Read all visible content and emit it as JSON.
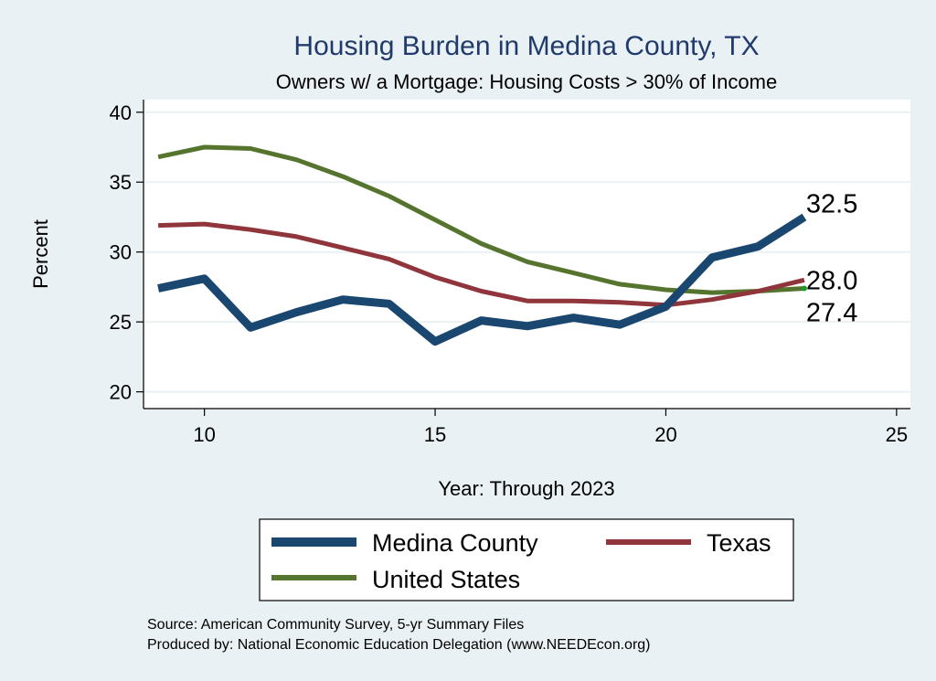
{
  "chart_data": {
    "type": "line",
    "title": "Housing Burden in Medina County, TX",
    "subtitle": "Owners w/ a Mortgage: Housing Costs > 30% of Income",
    "xlabel": "Year: Through 2023",
    "ylabel": "Percent",
    "xlim": [
      8.7,
      25.3
    ],
    "ylim": [
      18.8,
      40.9
    ],
    "x_ticks": [
      10,
      15,
      20,
      25
    ],
    "y_ticks": [
      20,
      25,
      30,
      35,
      40
    ],
    "grid": true,
    "x": [
      9,
      10,
      11,
      12,
      13,
      14,
      15,
      16,
      17,
      18,
      19,
      20,
      21,
      22,
      23
    ],
    "series": [
      {
        "name": "Medina County",
        "color": "#1a476f",
        "values": [
          27.4,
          28.1,
          24.6,
          25.7,
          26.6,
          26.3,
          23.6,
          25.1,
          24.7,
          25.3,
          24.8,
          26.1,
          29.6,
          30.4,
          32.5
        ],
        "end_label": "32.5"
      },
      {
        "name": "Texas",
        "color": "#90353b",
        "values": [
          31.9,
          32.0,
          31.6,
          31.1,
          30.3,
          29.5,
          28.2,
          27.2,
          26.5,
          26.5,
          26.4,
          26.2,
          26.6,
          27.2,
          28.0
        ],
        "end_label": "28.0"
      },
      {
        "name": "United States",
        "color": "#55752f",
        "values": [
          36.8,
          37.5,
          37.4,
          36.6,
          35.4,
          34.0,
          32.3,
          30.6,
          29.3,
          28.5,
          27.7,
          27.3,
          27.1,
          27.2,
          27.4
        ],
        "end_label": "27.4"
      }
    ],
    "legend": {
      "position": "bottom",
      "items": [
        "Medina County",
        "Texas",
        "United States"
      ]
    },
    "notes": [
      "Source: American Community Survey, 5-yr Summary Files",
      "Produced by: National Economic Education Delegation (www.NEEDEcon.org)"
    ]
  }
}
